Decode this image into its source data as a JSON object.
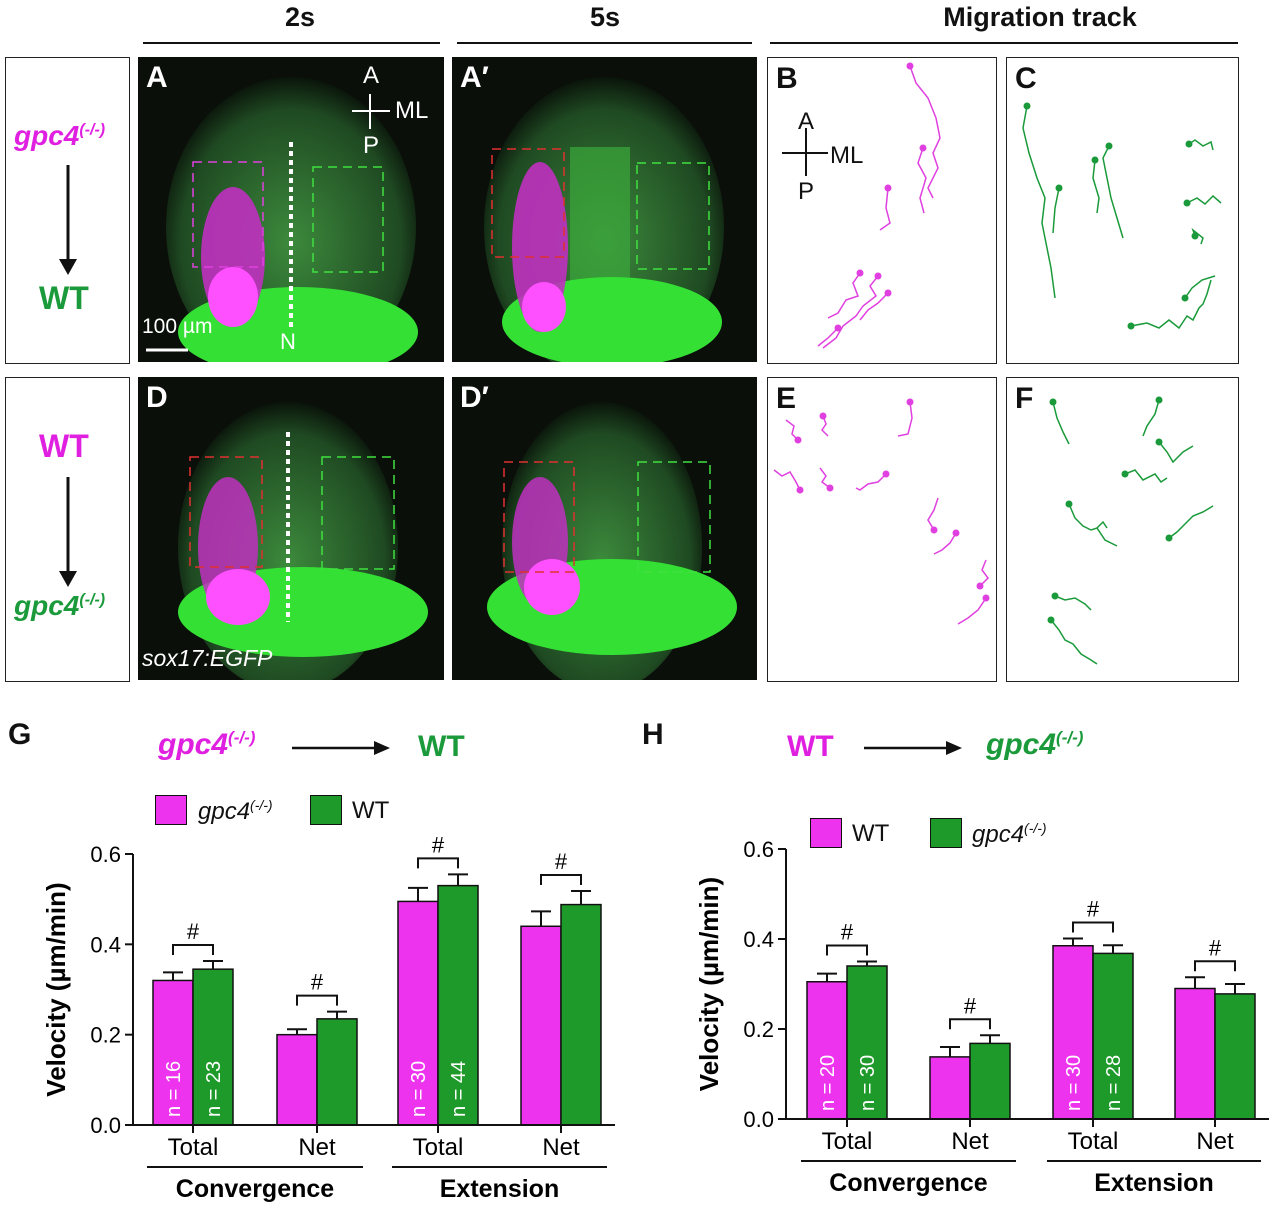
{
  "headers": {
    "col1": "2s",
    "col2": "5s",
    "col3": "Migration track"
  },
  "colors": {
    "magenta": "#e020e0",
    "green": "#1a9a3a",
    "bar_magenta": "#ee33ee",
    "bar_green": "#1e9a2a"
  },
  "row1": {
    "donor": "gpc4",
    "donor_sup": "(-/-)",
    "host": "WT",
    "labels": {
      "a": "A",
      "a_prime": "A′",
      "b": "B",
      "c": "C"
    },
    "axis": {
      "a": "A",
      "ml": "ML",
      "p": "P"
    },
    "scale_bar": "100 µm",
    "notochord": "N"
  },
  "row2": {
    "donor": "WT",
    "host": "gpc4",
    "host_sup": "(-/-)",
    "labels": {
      "d": "D",
      "d_prime": "D′",
      "e": "E",
      "f": "F"
    },
    "transgene": "sox17:EGFP"
  },
  "panel_g": {
    "label": "G",
    "title_donor": "gpc4",
    "title_donor_sup": "(-/-)",
    "title_host": "WT",
    "legend": [
      {
        "name": "gpc4",
        "sup": "(-/-)",
        "italic": true
      },
      {
        "name": "WT",
        "sup": "",
        "italic": false
      }
    ]
  },
  "panel_h": {
    "label": "H",
    "title_donor": "WT",
    "title_host": "gpc4",
    "title_host_sup": "(-/-)",
    "legend": [
      {
        "name": "WT",
        "sup": "",
        "italic": false
      },
      {
        "name": "gpc4",
        "sup": "(-/-)",
        "italic": true
      }
    ]
  },
  "chart_data": [
    {
      "panel": "G",
      "type": "bar",
      "ylabel": "Velocity (µm/min)",
      "ylim": [
        0,
        0.6
      ],
      "yticks": [
        "0.0",
        "0.2",
        "0.4",
        "0.6"
      ],
      "categories": [
        "Total",
        "Net",
        "Total",
        "Net"
      ],
      "groups": [
        "Convergence",
        "Extension"
      ],
      "series": [
        {
          "name": "gpc4(-/-)",
          "values": [
            0.32,
            0.2,
            0.495,
            0.44
          ],
          "errors": [
            0.018,
            0.012,
            0.03,
            0.033
          ],
          "n": [
            "n = 16",
            "",
            "n = 30",
            ""
          ]
        },
        {
          "name": "WT",
          "values": [
            0.345,
            0.235,
            0.53,
            0.488
          ],
          "errors": [
            0.018,
            0.016,
            0.025,
            0.03
          ],
          "n": [
            "n = 23",
            "",
            "n = 44",
            ""
          ]
        }
      ],
      "significance": [
        "#",
        "#",
        "#",
        "#"
      ]
    },
    {
      "panel": "H",
      "type": "bar",
      "ylabel": "Velocity (µm/min)",
      "ylim": [
        0,
        0.6
      ],
      "yticks": [
        "0.0",
        "0.2",
        "0.4",
        "0.6"
      ],
      "categories": [
        "Total",
        "Net",
        "Total",
        "Net"
      ],
      "groups": [
        "Convergence",
        "Extension"
      ],
      "series": [
        {
          "name": "WT",
          "values": [
            0.305,
            0.138,
            0.385,
            0.29
          ],
          "errors": [
            0.018,
            0.022,
            0.016,
            0.025
          ],
          "n": [
            "n = 20",
            "",
            "n = 30",
            ""
          ]
        },
        {
          "name": "gpc4(-/-)",
          "values": [
            0.34,
            0.168,
            0.368,
            0.278
          ],
          "errors": [
            0.01,
            0.018,
            0.018,
            0.022
          ],
          "n": [
            "n = 30",
            "",
            "n = 28",
            ""
          ]
        }
      ],
      "significance": [
        "#",
        "#",
        "#",
        "#"
      ]
    }
  ]
}
